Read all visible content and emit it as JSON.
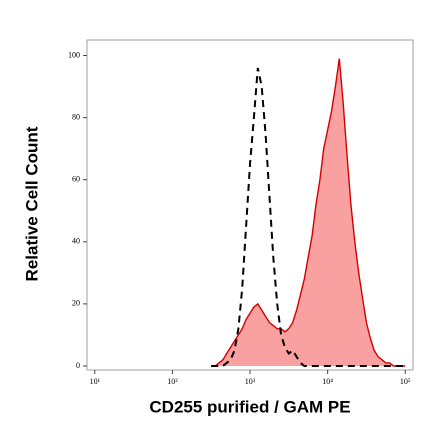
{
  "chart_data": {
    "type": "histogram-overlay",
    "x_label": "CD255 purified / GAM PE",
    "y_label": "Relative Cell Count",
    "x_log": true,
    "xlim": [
      7.94,
      125893
    ],
    "ylim": [
      -1.3,
      105
    ],
    "xticks": [
      {
        "value": 10,
        "label": "10¹"
      },
      {
        "value": 100,
        "label": "10²"
      },
      {
        "value": 1000,
        "label": "10³"
      },
      {
        "value": 10000,
        "label": "10⁴"
      },
      {
        "value": 100000,
        "label": "10⁵"
      }
    ],
    "yticks": [
      0,
      20,
      40,
      60,
      80,
      100
    ],
    "x": [
      316,
      355,
      398,
      447,
      501,
      562,
      631,
      708,
      794,
      891,
      1000,
      1122,
      1259,
      1413,
      1585,
      1778,
      1995,
      2239,
      2512,
      2818,
      3162,
      3548,
      3981,
      4467,
      5012,
      5623,
      6310,
      7079,
      7943,
      8913,
      10000,
      11220,
      12589,
      14125,
      15849,
      17783,
      19953,
      22387,
      25119,
      28184,
      31623,
      35481,
      39811,
      44668,
      50119,
      56234,
      63096,
      70795,
      79433,
      89125,
      100000
    ],
    "series": [
      {
        "color": "#d40000",
        "fill": "#f9a0a0",
        "dashed": false,
        "values": [
          0,
          0,
          1,
          2,
          4,
          6,
          8,
          10,
          12,
          15,
          17,
          19,
          20,
          18,
          16,
          14,
          13,
          12,
          12,
          11,
          12,
          14,
          18,
          23,
          28,
          35,
          42,
          52,
          60,
          70,
          76,
          82,
          90,
          99,
          85,
          68,
          52,
          40,
          30,
          22,
          14,
          9,
          5,
          3,
          2,
          1,
          1,
          0,
          0,
          0,
          0
        ]
      },
      {
        "color": "#000000",
        "fill": null,
        "dashed": true,
        "values": [
          0,
          0,
          0,
          0,
          1,
          2,
          5,
          12,
          25,
          45,
          65,
          80,
          96,
          90,
          75,
          55,
          35,
          20,
          10,
          6,
          4,
          5,
          3,
          1,
          0,
          0,
          0,
          0,
          0,
          0,
          0,
          0,
          0,
          0,
          0,
          0,
          0,
          0,
          0,
          0,
          0,
          0,
          0,
          0,
          0,
          0,
          0,
          0,
          0,
          0,
          0
        ]
      }
    ]
  }
}
